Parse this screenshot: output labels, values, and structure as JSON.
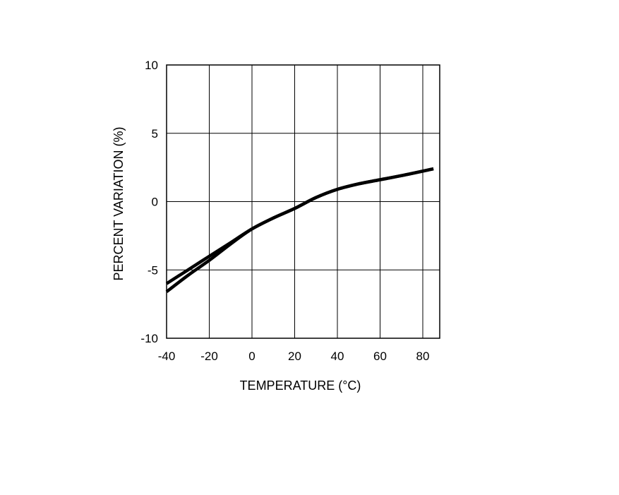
{
  "chart_data": {
    "type": "line",
    "title": "",
    "xlabel": "TEMPERATURE (°C)",
    "ylabel": "PERCENT VARIATION (%)",
    "xlim": [
      -40,
      90
    ],
    "ylim": [
      -10,
      10
    ],
    "x_ticks": [
      -40,
      -20,
      0,
      20,
      40,
      60,
      80
    ],
    "y_ticks": [
      -10,
      -5,
      0,
      5,
      10
    ],
    "x_tick_labels": [
      "-40",
      "-20",
      "0",
      "20",
      "40",
      "60",
      "80"
    ],
    "y_tick_labels": [
      "-10",
      "-5",
      "0",
      "5",
      "10"
    ],
    "grid": true,
    "legend": "none",
    "line_color": "#000000",
    "series": [
      {
        "x": [
          -40,
          -30,
          -20,
          -10,
          0,
          10,
          20,
          30,
          40,
          50,
          60,
          70,
          85
        ],
        "y": [
          -6.0,
          -5.0,
          -4.0,
          -3.0,
          -2.0,
          -1.2,
          -0.5,
          0.3,
          0.9,
          1.3,
          1.6,
          1.9,
          2.4
        ]
      },
      {
        "x": [
          -40,
          -30,
          -20,
          -10,
          0,
          10,
          20,
          30,
          40,
          50,
          60,
          70,
          85
        ],
        "y": [
          -6.6,
          -5.4,
          -4.3,
          -3.1,
          -2.0,
          -1.2,
          -0.5,
          0.3,
          0.9,
          1.3,
          1.6,
          1.9,
          2.4
        ]
      }
    ]
  }
}
